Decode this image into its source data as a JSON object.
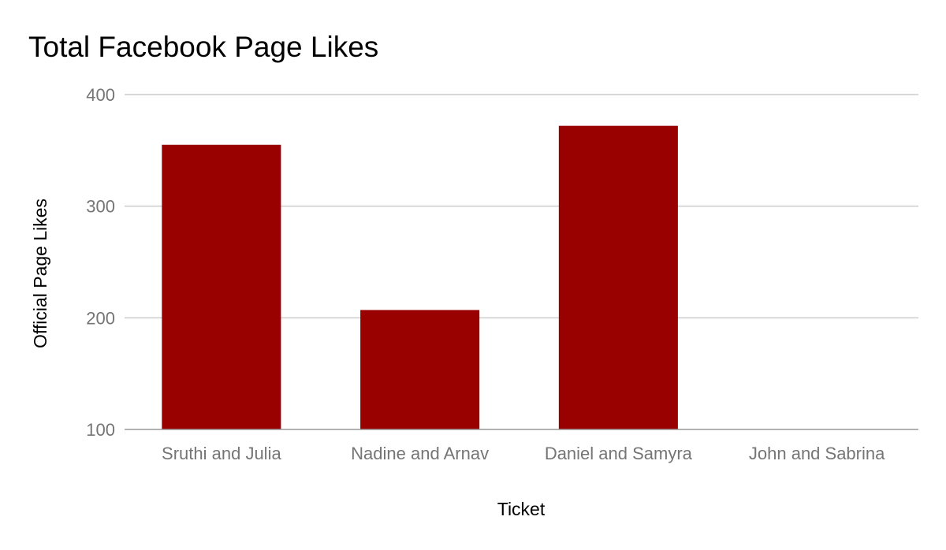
{
  "chart_data": {
    "type": "bar",
    "title": "Total Facebook Page Likes",
    "xlabel": "Ticket",
    "ylabel": "Official Page Likes",
    "categories": [
      "Sruthi and Julia",
      "Nadine and Arnav",
      "Daniel and Samyra",
      "John and Sabrina"
    ],
    "values": [
      355,
      207,
      372,
      100
    ],
    "ylim": [
      100,
      400
    ],
    "yticks": [
      "100",
      "200",
      "300",
      "400"
    ],
    "bar_color": "#990000",
    "grid": true,
    "legend": "none"
  }
}
